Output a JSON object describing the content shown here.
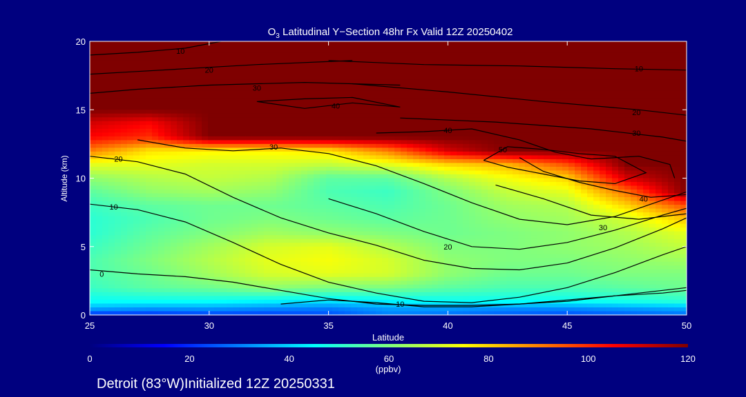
{
  "chart_data": {
    "type": "heatmap",
    "title_prefix": "O",
    "title_sub": "3",
    "title_rest": " Latitudinal Y−Section 48hr  Fx Valid 12Z 20250402",
    "xlabel": "Latitude",
    "ylabel": "Altitude (km)",
    "xlim": [
      25,
      50
    ],
    "ylim": [
      0,
      20
    ],
    "x_ticks": [
      "25",
      "30",
      "35",
      "40",
      "45",
      "50"
    ],
    "y_ticks": [
      "0",
      "5",
      "10",
      "15",
      "20"
    ],
    "colorbar": {
      "range": [
        0,
        120
      ],
      "ticks": [
        "0",
        "20",
        "40",
        "60",
        "80",
        "100",
        "120"
      ],
      "unit": "(ppbv)",
      "colors": [
        "#00007f",
        "#0000ff",
        "#007fff",
        "#00ffff",
        "#7fff7f",
        "#ffff00",
        "#ff7f00",
        "#ff0000",
        "#7f0000"
      ]
    },
    "field_grid": {
      "lat": [
        25,
        27.5,
        30,
        32.5,
        35,
        37.5,
        40,
        42.5,
        45,
        47.5,
        50
      ],
      "alt": [
        0,
        0.5,
        1,
        2,
        3,
        4,
        5,
        6,
        7,
        8,
        9,
        10,
        11,
        12,
        13,
        14,
        15,
        16,
        18,
        20
      ],
      "ozone_ppbv": [
        [
          20,
          20,
          22,
          22,
          24,
          30,
          28,
          26,
          24,
          26,
          28
        ],
        [
          36,
          34,
          34,
          32,
          30,
          34,
          34,
          32,
          32,
          34,
          36
        ],
        [
          46,
          46,
          46,
          44,
          42,
          44,
          46,
          46,
          46,
          48,
          50
        ],
        [
          52,
          56,
          58,
          62,
          60,
          60,
          56,
          54,
          54,
          56,
          58
        ],
        [
          54,
          58,
          64,
          70,
          72,
          70,
          62,
          58,
          58,
          60,
          60
        ],
        [
          54,
          60,
          66,
          72,
          74,
          70,
          62,
          60,
          60,
          62,
          64
        ],
        [
          52,
          58,
          64,
          70,
          72,
          66,
          60,
          60,
          62,
          64,
          68
        ],
        [
          50,
          56,
          60,
          64,
          62,
          60,
          58,
          60,
          62,
          66,
          72
        ],
        [
          50,
          54,
          58,
          60,
          58,
          56,
          58,
          62,
          64,
          70,
          82
        ],
        [
          52,
          56,
          58,
          58,
          56,
          54,
          58,
          64,
          66,
          80,
          96
        ],
        [
          56,
          62,
          64,
          62,
          54,
          52,
          60,
          68,
          72,
          92,
          120
        ],
        [
          62,
          66,
          68,
          66,
          56,
          56,
          66,
          74,
          80,
          110,
          120
        ],
        [
          72,
          72,
          70,
          70,
          68,
          72,
          80,
          84,
          96,
          120,
          120
        ],
        [
          90,
          78,
          76,
          76,
          78,
          90,
          110,
          120,
          120,
          120,
          120
        ],
        [
          105,
          100,
          120,
          120,
          120,
          120,
          120,
          120,
          120,
          120,
          120
        ],
        [
          110,
          105,
          120,
          120,
          120,
          120,
          120,
          120,
          120,
          120,
          120
        ],
        [
          120,
          120,
          120,
          120,
          120,
          120,
          120,
          120,
          120,
          120,
          120
        ],
        [
          120,
          120,
          120,
          120,
          120,
          120,
          120,
          120,
          120,
          120,
          120
        ],
        [
          120,
          120,
          120,
          120,
          120,
          120,
          120,
          120,
          120,
          120,
          120
        ],
        [
          120,
          120,
          120,
          120,
          120,
          120,
          120,
          120,
          120,
          120,
          120
        ]
      ]
    },
    "contours": [
      {
        "label": "0",
        "label_at": [
          25.5,
          3.0
        ],
        "points": [
          [
            25,
            3.3
          ],
          [
            27,
            3.0
          ],
          [
            29,
            2.8
          ],
          [
            31,
            2.4
          ],
          [
            33,
            1.8
          ],
          [
            35,
            1.2
          ],
          [
            37,
            0.8
          ],
          [
            39,
            0.7
          ],
          [
            41,
            0.7
          ],
          [
            43,
            0.8
          ],
          [
            45,
            1.0
          ],
          [
            47,
            1.4
          ],
          [
            49,
            1.8
          ],
          [
            50,
            2.0
          ]
        ]
      },
      {
        "label": "10",
        "label_at": [
          26.0,
          7.9
        ],
        "points": [
          [
            25,
            8.1
          ],
          [
            27,
            7.7
          ],
          [
            29,
            6.8
          ],
          [
            31,
            5.3
          ],
          [
            33,
            3.7
          ],
          [
            35,
            2.4
          ],
          [
            37,
            1.6
          ],
          [
            39,
            1.0
          ],
          [
            41,
            0.9
          ],
          [
            43,
            1.3
          ],
          [
            45,
            2.0
          ],
          [
            47,
            3.1
          ],
          [
            49,
            4.4
          ],
          [
            50,
            5.0
          ]
        ]
      },
      {
        "label": "10",
        "label_at": [
          38.0,
          0.8
        ],
        "points": [
          [
            33,
            0.8
          ],
          [
            35,
            1.1
          ],
          [
            37,
            0.9
          ],
          [
            39,
            0.6
          ],
          [
            41,
            0.6
          ],
          [
            43,
            0.8
          ],
          [
            45,
            1.1
          ],
          [
            47,
            1.4
          ],
          [
            49,
            1.6
          ],
          [
            50,
            1.8
          ]
        ]
      },
      {
        "label": "20",
        "label_at": [
          26.2,
          11.4
        ],
        "points": [
          [
            25,
            11.6
          ],
          [
            27,
            11.2
          ],
          [
            29,
            10.3
          ],
          [
            31,
            8.6
          ],
          [
            33,
            7.1
          ],
          [
            35,
            6.0
          ],
          [
            37,
            5.1
          ],
          [
            39,
            4.0
          ],
          [
            41,
            3.4
          ],
          [
            43,
            3.3
          ],
          [
            45,
            3.8
          ],
          [
            47,
            4.9
          ],
          [
            49,
            6.3
          ],
          [
            50,
            7.1
          ]
        ]
      },
      {
        "label": "20",
        "label_at": [
          40.0,
          5.0
        ],
        "points": [
          [
            35,
            8.5
          ],
          [
            37,
            7.4
          ],
          [
            39,
            6.1
          ],
          [
            41,
            5.0
          ],
          [
            43,
            4.8
          ],
          [
            45,
            5.3
          ],
          [
            47,
            6.2
          ],
          [
            49,
            7.3
          ],
          [
            50,
            7.8
          ]
        ]
      },
      {
        "label": "30",
        "label_at": [
          32.7,
          12.3
        ],
        "points": [
          [
            27,
            12.8
          ],
          [
            29,
            12.2
          ],
          [
            31,
            12.0
          ],
          [
            33,
            12.2
          ],
          [
            35,
            11.8
          ],
          [
            37,
            10.9
          ],
          [
            39,
            9.6
          ],
          [
            41,
            8.2
          ],
          [
            43,
            7.0
          ],
          [
            45,
            6.6
          ],
          [
            47,
            7.2
          ],
          [
            49,
            8.4
          ],
          [
            50,
            9.0
          ]
        ]
      },
      {
        "label": "30",
        "label_at": [
          46.5,
          6.4
        ],
        "points": [
          [
            42,
            9.5
          ],
          [
            44,
            8.5
          ],
          [
            46,
            7.3
          ],
          [
            48,
            7.0
          ],
          [
            50,
            7.4
          ]
        ]
      },
      {
        "label": "40",
        "label_at": [
          40.0,
          13.5
        ],
        "points": [
          [
            37,
            13.3
          ],
          [
            39,
            13.4
          ],
          [
            41,
            13.6
          ],
          [
            43,
            12.8
          ],
          [
            44.5,
            11.9
          ],
          [
            46,
            11.4
          ],
          [
            48,
            11.6
          ],
          [
            49.3,
            11.0
          ],
          [
            49.5,
            10.0
          ]
        ]
      },
      {
        "label": "40",
        "label_at": [
          48.2,
          8.5
        ],
        "points": [
          [
            43,
            11.5
          ],
          [
            44,
            10.5
          ],
          [
            45.5,
            9.7
          ],
          [
            47,
            9.1
          ],
          [
            48.5,
            8.6
          ],
          [
            50,
            8.8
          ]
        ]
      },
      {
        "label": "40",
        "label_at": [
          35.3,
          15.3
        ],
        "points": [
          [
            32,
            15.6
          ],
          [
            34,
            15.1
          ],
          [
            36,
            15.5
          ],
          [
            38,
            15.2
          ],
          [
            36,
            15.9
          ],
          [
            34,
            15.8
          ],
          [
            32,
            15.6
          ]
        ]
      },
      {
        "label": "50",
        "label_at": [
          42.3,
          12.1
        ],
        "points": [
          [
            41.5,
            11.3
          ],
          [
            42.5,
            12.3
          ],
          [
            44.0,
            12.1
          ],
          [
            45.5,
            11.8
          ],
          [
            47.0,
            11.6
          ],
          [
            48.3,
            10.4
          ],
          [
            47.0,
            9.6
          ],
          [
            45.5,
            9.8
          ],
          [
            44.0,
            10.3
          ],
          [
            42.5,
            10.8
          ],
          [
            41.5,
            11.3
          ]
        ]
      },
      {
        "label": "20",
        "label_at": [
          47.9,
          14.8
        ],
        "points": [
          [
            36,
            16.9
          ],
          [
            40,
            16.3
          ],
          [
            44,
            15.6
          ],
          [
            48,
            15.0
          ],
          [
            50,
            14.6
          ]
        ]
      },
      {
        "label": "30",
        "label_at": [
          47.9,
          13.3
        ],
        "points": [
          [
            38,
            14.4
          ],
          [
            42,
            14.1
          ],
          [
            46,
            13.6
          ],
          [
            49,
            13.0
          ],
          [
            50,
            12.7
          ]
        ]
      },
      {
        "label": "10",
        "label_at": [
          48.0,
          18.0
        ],
        "points": [
          [
            35,
            18.6
          ],
          [
            39,
            18.3
          ],
          [
            43,
            18.2
          ],
          [
            47,
            18.0
          ],
          [
            50,
            17.9
          ]
        ]
      },
      {
        "label": "10",
        "label_at": [
          28.8,
          19.3
        ],
        "points": [
          [
            25,
            19.0
          ],
          [
            27,
            19.2
          ],
          [
            29,
            19.5
          ],
          [
            30.5,
            20.0
          ]
        ]
      },
      {
        "label": "20",
        "label_at": [
          30.0,
          17.9
        ],
        "points": [
          [
            25,
            17.6
          ],
          [
            27,
            17.8
          ],
          [
            29,
            18.0
          ],
          [
            32,
            18.3
          ],
          [
            36,
            18.6
          ]
        ]
      },
      {
        "label": "30",
        "label_at": [
          32.0,
          16.6
        ],
        "points": [
          [
            25,
            16.2
          ],
          [
            27,
            16.5
          ],
          [
            30,
            16.8
          ],
          [
            34,
            17.0
          ],
          [
            38,
            16.8
          ]
        ]
      }
    ],
    "footer": "Detroit (83°W)Initialized 12Z 20250331"
  }
}
